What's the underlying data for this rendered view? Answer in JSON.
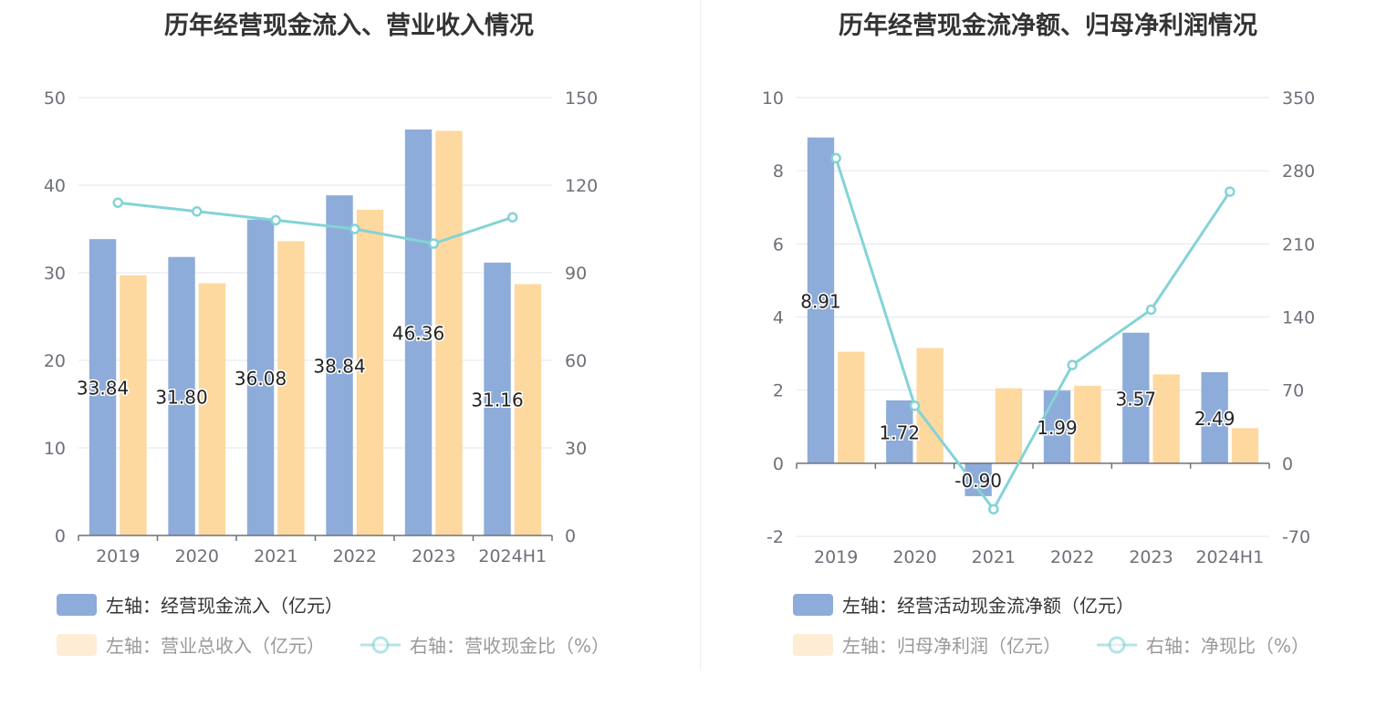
{
  "colors": {
    "bar1": "#8eacd9",
    "bar2": "#fdd89f",
    "line": "#84d3d6",
    "grid": "#e0e6f1",
    "axis": "#6e7079"
  },
  "charts": [
    {
      "title": "历年经营现金流入、营业收入情况",
      "legend": {
        "s1": "左轴：经营现金流入（亿元）",
        "s2": "左轴：营业总收入（亿元）",
        "s3": "右轴：营收现金比（%）"
      }
    },
    {
      "title": "历年经营现金流净额、归母净利润情况",
      "legend": {
        "s1": "左轴：经营活动现金流净额（亿元）",
        "s2": "左轴：归母净利润（亿元）",
        "s3": "右轴：净现比（%）"
      }
    }
  ],
  "chart_data": [
    {
      "type": "bar",
      "title": "历年经营现金流入、营业收入情况",
      "categories": [
        "2019",
        "2020",
        "2021",
        "2022",
        "2023",
        "2024H1"
      ],
      "y_left": {
        "min": 0,
        "max": 50,
        "ticks": [
          "0",
          "10",
          "20",
          "30",
          "40",
          "50"
        ]
      },
      "y_right": {
        "min": 0,
        "max": 150,
        "ticks": [
          "0",
          "30",
          "60",
          "90",
          "120",
          "150"
        ]
      },
      "series": [
        {
          "name": "左轴：经营现金流入（亿元）",
          "axis": "left",
          "kind": "bar",
          "values": [
            33.84,
            31.8,
            36.08,
            38.84,
            46.36,
            31.16
          ],
          "labels": [
            "33.84",
            "31.80",
            "36.08",
            "38.84",
            "46.36",
            "31.16"
          ]
        },
        {
          "name": "左轴：营业总收入（亿元）",
          "axis": "left",
          "kind": "bar",
          "values": [
            29.7,
            28.8,
            33.6,
            37.2,
            46.2,
            28.7
          ]
        },
        {
          "name": "右轴：营收现金比（%）",
          "axis": "right",
          "kind": "line",
          "values": [
            114,
            111,
            108,
            105,
            100,
            109
          ]
        }
      ],
      "grid": true,
      "legend_position": "bottom"
    },
    {
      "type": "bar",
      "title": "历年经营现金流净额、归母净利润情况",
      "categories": [
        "2019",
        "2020",
        "2021",
        "2022",
        "2023",
        "2024H1"
      ],
      "y_left": {
        "min": -2,
        "max": 10,
        "ticks": [
          "-2",
          "0",
          "2",
          "4",
          "6",
          "8",
          "10"
        ]
      },
      "y_right": {
        "min": -70,
        "max": 350,
        "ticks": [
          "-70",
          "0",
          "70",
          "140",
          "210",
          "280",
          "350"
        ]
      },
      "series": [
        {
          "name": "左轴：经营活动现金流净额（亿元）",
          "axis": "left",
          "kind": "bar",
          "values": [
            8.91,
            1.72,
            -0.9,
            1.99,
            3.57,
            2.49
          ],
          "labels": [
            "8.91",
            "1.72",
            "-0.90",
            "1.99",
            "3.57",
            "2.49"
          ]
        },
        {
          "name": "左轴：归母净利润（亿元）",
          "axis": "left",
          "kind": "bar",
          "values": [
            3.05,
            3.15,
            2.05,
            2.12,
            2.43,
            0.96
          ]
        },
        {
          "name": "右轴：净现比（%）",
          "axis": "right",
          "kind": "line",
          "values": [
            292,
            55,
            -44,
            94,
            147,
            260
          ]
        }
      ],
      "grid": true,
      "legend_position": "bottom"
    }
  ]
}
